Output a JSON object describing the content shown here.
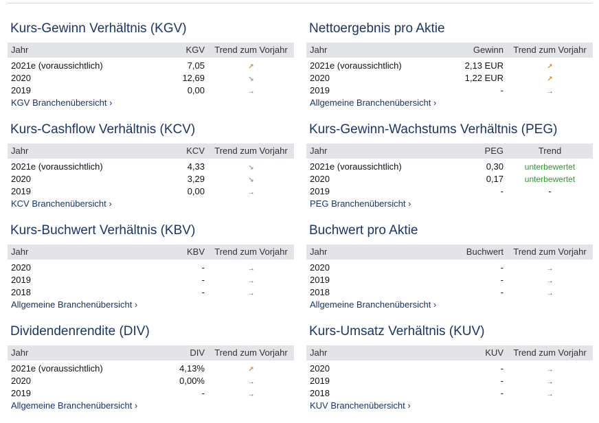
{
  "panels": {
    "kgv": {
      "title": "Kurs-Gewinn Verhältnis (KGV)",
      "col_year": "Jahr",
      "col_value": "KGV",
      "col_trend": "Trend zum Vorjahr",
      "rows": [
        {
          "year": "2021e (voraussichtlich)",
          "value": "7,05",
          "trend": "up"
        },
        {
          "year": "2020",
          "value": "12,69",
          "trend": "down"
        },
        {
          "year": "2019",
          "value": "0,00",
          "trend": "flat"
        }
      ],
      "link": "KGV Branchenübersicht ›"
    },
    "netto": {
      "title": "Nettoergebnis pro Aktie",
      "col_year": "Jahr",
      "col_value": "Gewinn",
      "col_trend": "Trend zum Vorjahr",
      "rows": [
        {
          "year": "2021e (voraussichtlich)",
          "value": "2,13 EUR",
          "trend": "up"
        },
        {
          "year": "2020",
          "value": "1,22 EUR",
          "trend": "up"
        },
        {
          "year": "2019",
          "value": "-",
          "trend": "flat"
        }
      ],
      "link": "Allgemeine Branchenübersicht ›"
    },
    "kcv": {
      "title": "Kurs-Cashflow Verhältnis (KCV)",
      "col_year": "Jahr",
      "col_value": "KCV",
      "col_trend": "Trend zum Vorjahr",
      "rows": [
        {
          "year": "2021e (voraussichtlich)",
          "value": "4,33",
          "trend": "down"
        },
        {
          "year": "2020",
          "value": "3,29",
          "trend": "down"
        },
        {
          "year": "2019",
          "value": "0,00",
          "trend": "flat"
        }
      ],
      "link": "KCV Branchenübersicht ›"
    },
    "peg": {
      "title": "Kurs-Gewinn-Wachstums Verhältnis (PEG)",
      "col_year": "Jahr",
      "col_value": "PEG",
      "col_trend": "Trend",
      "rows": [
        {
          "year": "2021e (voraussichtlich)",
          "value": "0,30",
          "trend_text": "unterbewertet"
        },
        {
          "year": "2020",
          "value": "0,17",
          "trend_text": "unterbewertet"
        },
        {
          "year": "2019",
          "value": "-",
          "trend_text": "-"
        }
      ],
      "link": "PEG Branchenübersicht ›"
    },
    "kbv": {
      "title": "Kurs-Buchwert Verhältnis (KBV)",
      "col_year": "Jahr",
      "col_value": "KBV",
      "col_trend": "Trend zum Vorjahr",
      "rows": [
        {
          "year": "2020",
          "value": "-",
          "trend": "flat"
        },
        {
          "year": "2019",
          "value": "-",
          "trend": "flat"
        },
        {
          "year": "2018",
          "value": "-",
          "trend": "flat"
        }
      ],
      "link": "Allgemeine Branchenübersicht ›"
    },
    "buchwert": {
      "title": "Buchwert pro Aktie",
      "col_year": "Jahr",
      "col_value": "Buchwert",
      "col_trend": "Trend zum Vorjahr",
      "rows": [
        {
          "year": "2020",
          "value": "-",
          "trend": "flat"
        },
        {
          "year": "2019",
          "value": "-",
          "trend": "flat"
        },
        {
          "year": "2018",
          "value": "-",
          "trend": "flat"
        }
      ],
      "link": "Allgemeine Branchenübersicht ›"
    },
    "div": {
      "title": "Dividendenrendite (DIV)",
      "col_year": "Jahr",
      "col_value": "DIV",
      "col_trend": "Trend zum Vorjahr",
      "rows": [
        {
          "year": "2021e (voraussichtlich)",
          "value": "4,13%",
          "trend": "up"
        },
        {
          "year": "2020",
          "value": "0,00%",
          "trend": "flat"
        },
        {
          "year": "2019",
          "value": "-",
          "trend": "flat"
        }
      ],
      "link": "Allgemeine Branchenübersicht ›"
    },
    "kuv": {
      "title": "Kurs-Umsatz Verhältnis (KUV)",
      "col_year": "Jahr",
      "col_value": "KUV",
      "col_trend": "Trend zum Vorjahr",
      "rows": [
        {
          "year": "2020",
          "value": "-",
          "trend": "flat"
        },
        {
          "year": "2019",
          "value": "-",
          "trend": "flat"
        },
        {
          "year": "2018",
          "value": "-",
          "trend": "flat"
        }
      ],
      "link": "KUV Branchenübersicht ›"
    }
  },
  "icons": {
    "up": "trend-up-icon",
    "down": "trend-down-icon",
    "flat": "trend-flat-icon"
  },
  "colors": {
    "title": "#1a3566",
    "header_bg": "#e3e4e8",
    "up": "#d08a2c",
    "down": "#8b9aa6",
    "flat": "#2a5a95",
    "positive_text": "#2b9a2b"
  }
}
